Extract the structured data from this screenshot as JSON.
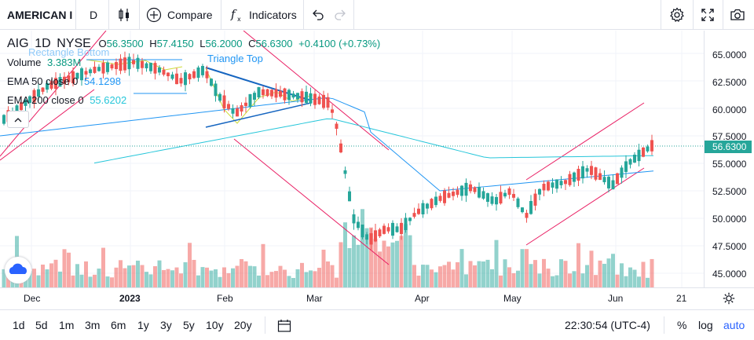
{
  "header": {
    "symbol": "AMERICAN I",
    "interval": "D",
    "compare_label": "Compare",
    "indicators_label": "Indicators"
  },
  "legend": {
    "ticker": "AIG",
    "timeframe": "1D",
    "exchange": "NYSE",
    "o_label": "O",
    "o_val": "56.3500",
    "h_label": "H",
    "h_val": "57.4150",
    "l_label": "L",
    "l_val": "56.2000",
    "c_label": "C",
    "c_val": "56.6300",
    "change": "+0.4100 (+0.73%)",
    "volume_label": "Volume",
    "volume_val": "3.383M",
    "ema50_label": "EMA 50 close 0",
    "ema50_val": "54.1298",
    "ema200_label": "EMA 200 close 0",
    "ema200_val": "55.6202"
  },
  "drawings": {
    "rect_label": "Rectangle Bottom",
    "triangle_label": "Triangle Top"
  },
  "y_axis": [
    "65.0000",
    "62.5000",
    "60.0000",
    "57.5000",
    "55.0000",
    "52.5000",
    "50.0000",
    "47.5000",
    "45.0000"
  ],
  "last_price": "56.6300",
  "x_axis": [
    "Dec",
    "2023",
    "Feb",
    "Mar",
    "Apr",
    "May",
    "Jun",
    "21"
  ],
  "ranges": [
    "1d",
    "5d",
    "1m",
    "3m",
    "6m",
    "1y",
    "3y",
    "5y",
    "10y",
    "20y"
  ],
  "time": "22:30:54 (UTC-4)",
  "scale": {
    "percent": "%",
    "log": "log",
    "auto": "auto"
  },
  "colors": {
    "up": "#26a69a",
    "down": "#ef5350",
    "ema50": "#2196f3",
    "ema200": "#26c6da",
    "accent": "#2962ff"
  },
  "chart_data": {
    "type": "candlestick",
    "symbol": "AIG",
    "interval": "1D",
    "ylim": [
      44.0,
      67.0
    ],
    "series": [
      {
        "name": "EMA 50 close 0"
      },
      {
        "name": "EMA 200 close 0"
      }
    ]
  }
}
